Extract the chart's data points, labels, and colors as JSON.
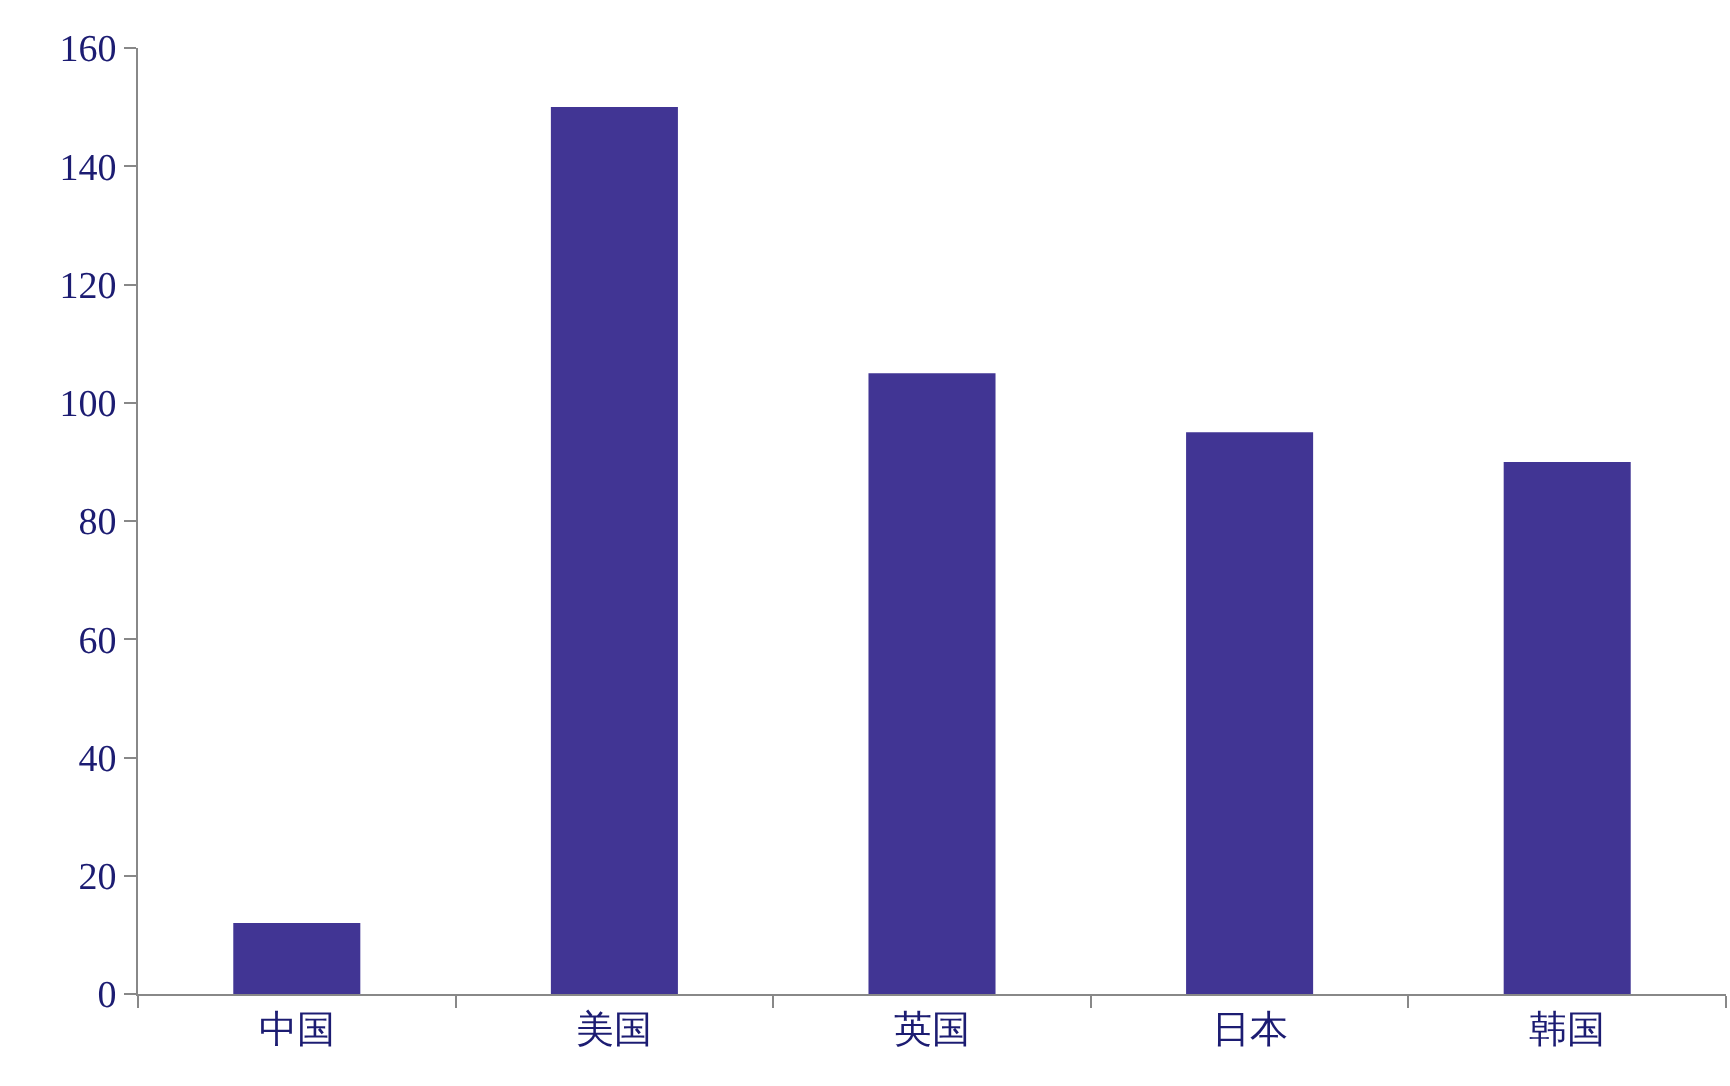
{
  "chart_data": {
    "type": "bar",
    "categories": [
      "中国",
      "美国",
      "英国",
      "日本",
      "韩国"
    ],
    "values": [
      12,
      150,
      105,
      95,
      90
    ],
    "color": "#413594",
    "ylim": [
      0,
      160
    ],
    "yticks": [
      0,
      20,
      40,
      60,
      80,
      100,
      120,
      140,
      160
    ],
    "grid": false
  }
}
